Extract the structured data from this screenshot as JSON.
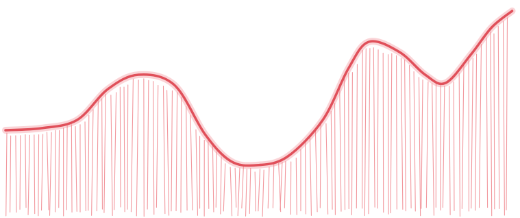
{
  "chart_data": {
    "type": "area",
    "x": [
      0,
      7,
      14,
      20,
      26,
      33,
      39,
      44,
      49,
      55,
      62,
      67,
      71,
      77,
      82,
      86,
      91,
      95,
      99
    ],
    "values": [
      40,
      41,
      45,
      60,
      67,
      62,
      38,
      25,
      23,
      27,
      45,
      70,
      83,
      78,
      67,
      63,
      77,
      90,
      98
    ],
    "xlim": [
      0,
      100
    ],
    "ylim": [
      0,
      100
    ],
    "color": "#e0505a",
    "fill_color": "#f0858c"
  }
}
